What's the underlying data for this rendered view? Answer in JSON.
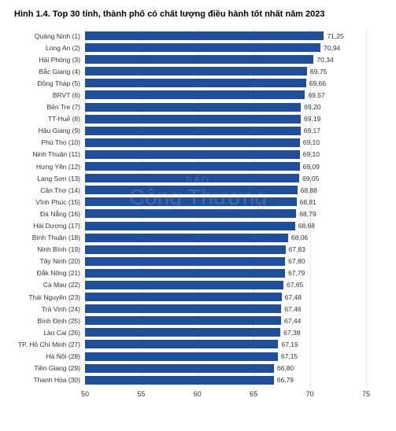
{
  "chart": {
    "type": "bar-horizontal",
    "title": "Hình 1.4. Top 30 tỉnh, thành phố có chất lượng điều hành tốt nhất năm 2023",
    "title_fontsize": 11,
    "title_fontweight": "bold",
    "title_color": "#000000",
    "background_color": "#ffffff",
    "bar_color": "#1f4e9c",
    "grid_color": "#e5e5e5",
    "label_color": "#333333",
    "value_color": "#333333",
    "label_fontsize": 8.5,
    "value_fontsize": 8.5,
    "tick_fontsize": 9,
    "xlim": [
      50,
      75
    ],
    "xticks": [
      50,
      55,
      60,
      65,
      70,
      75
    ],
    "watermark": {
      "top": "BÁO",
      "main": "Công Thương"
    },
    "items": [
      {
        "label": "Quảng Ninh (1)",
        "value": 71.25,
        "display": "71,25"
      },
      {
        "label": "Long An (2)",
        "value": 70.94,
        "display": "70,94"
      },
      {
        "label": "Hải Phòng (3)",
        "value": 70.34,
        "display": "70,34"
      },
      {
        "label": "Bắc Giang (4)",
        "value": 69.75,
        "display": "69,75"
      },
      {
        "label": "Đồng Tháp (5)",
        "value": 69.66,
        "display": "69,66"
      },
      {
        "label": "BRVT (6)",
        "value": 69.57,
        "display": "69,57"
      },
      {
        "label": "Bến Tre (7)",
        "value": 69.2,
        "display": "69,20"
      },
      {
        "label": "TT-Huế (8)",
        "value": 69.19,
        "display": "69,19"
      },
      {
        "label": "Hậu Giang (9)",
        "value": 69.17,
        "display": "69,17"
      },
      {
        "label": "Phú Thọ (10)",
        "value": 69.1,
        "display": "69,10"
      },
      {
        "label": "Ninh Thuận (11)",
        "value": 69.1,
        "display": "69,10"
      },
      {
        "label": "Hưng Yên (12)",
        "value": 69.09,
        "display": "69,09"
      },
      {
        "label": "Lạng Sơn (13)",
        "value": 69.05,
        "display": "69,05"
      },
      {
        "label": "Cần Thơ (14)",
        "value": 68.88,
        "display": "68,88"
      },
      {
        "label": "Vĩnh Phúc (15)",
        "value": 68.81,
        "display": "68,81"
      },
      {
        "label": "Đà Nẵng (16)",
        "value": 68.79,
        "display": "68,79"
      },
      {
        "label": "Hải Dương (17)",
        "value": 68.68,
        "display": "68,68"
      },
      {
        "label": "Bình Thuận (18)",
        "value": 68.06,
        "display": "68,06"
      },
      {
        "label": "Ninh Bình (19)",
        "value": 67.83,
        "display": "67,83"
      },
      {
        "label": "Tây Ninh (20)",
        "value": 67.8,
        "display": "67,80"
      },
      {
        "label": "Đắk Nông (21)",
        "value": 67.79,
        "display": "67,79"
      },
      {
        "label": "Cà Mau (22)",
        "value": 67.65,
        "display": "67,65"
      },
      {
        "label": "Thái Nguyên (23)",
        "value": 67.48,
        "display": "67,48"
      },
      {
        "label": "Trà Vinh (24)",
        "value": 67.46,
        "display": "67,46"
      },
      {
        "label": "Bình Định (25)",
        "value": 67.44,
        "display": "67,44"
      },
      {
        "label": "Lào Cai (26)",
        "value": 67.38,
        "display": "67,38"
      },
      {
        "label": "TP. Hồ Chí Minh (27)",
        "value": 67.19,
        "display": "67,19"
      },
      {
        "label": "Hà Nội (28)",
        "value": 67.15,
        "display": "67,15"
      },
      {
        "label": "Tiền Giang (29)",
        "value": 66.8,
        "display": "66,80"
      },
      {
        "label": "Thanh Hóa (30)",
        "value": 66.79,
        "display": "66,79"
      }
    ]
  }
}
